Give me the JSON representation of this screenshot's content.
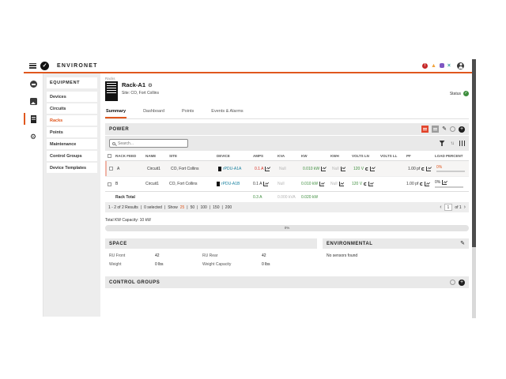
{
  "colors": {
    "accent_orange": "#E0571E",
    "alarm_red": "#D93025",
    "ok_green": "#3E8E3E",
    "link_teal": "#157F9E",
    "warning_amber": "#F2A33C",
    "purple": "#7E57C2",
    "teal_x": "#2BA198",
    "null_gray": "#B5B5B5"
  },
  "icons": {
    "check": "✓",
    "gear": "⚙",
    "edit": "✎",
    "plus": "+",
    "prev": "‹",
    "next": "›",
    "sort": "↑↓",
    "warning_triangle": "▲",
    "exclaim": "!",
    "close_x": "×"
  },
  "app_bar": {
    "title": "ENVIRONET"
  },
  "sidebar": {
    "header": "EQUIPMENT",
    "items": [
      "Devices",
      "Circuits",
      "Racks",
      "Points",
      "Maintenance",
      "Control Groups",
      "Device Templates"
    ],
    "active_item": "Racks"
  },
  "page_header": {
    "breadcrumb": "Racks",
    "title": "Rack-A1",
    "subtitle": "Site: CO, Fort Collins",
    "status_label": "Status"
  },
  "tabs": {
    "items": [
      "Summary",
      "Dashboard",
      "Points",
      "Events & Alarms"
    ],
    "active": "Summary"
  },
  "power": {
    "title": "POWER",
    "search_placeholder": "Search...",
    "columns": [
      "RACK FEED",
      "NAME",
      "SITE",
      "DEVICE",
      "AMPS",
      "KVA",
      "KW",
      "KWH",
      "VOLTS LN",
      "VOLTS LL",
      "PF",
      "LOAD PERCENT"
    ],
    "rows": [
      {
        "rack_feed": "A",
        "name": "Circuit1",
        "site": "CO, Fort Collins",
        "device": "rPDU-A1A",
        "amps": "0.1 A",
        "kva": "Null",
        "kw": "0.010 kW",
        "kwh": "Null",
        "volts_ln": "120 V",
        "volts_ll": "",
        "pf": "1.00 pf",
        "load_percent": "0%"
      },
      {
        "rack_feed": "B",
        "name": "Circuit1",
        "site": "CO, Fort Collins",
        "device": "rPDU-A1B",
        "amps": "0.1 A",
        "kva": "Null",
        "kw": "0.010 kW",
        "kwh": "Null",
        "volts_ln": "120 V",
        "volts_ll": "",
        "pf": "1.00 pf",
        "load_percent": "0%"
      }
    ],
    "total_row": {
      "label": "Rack Total",
      "amps": "0.3 A",
      "kva": "0.000 kVA",
      "kw": "0.020 kW"
    },
    "pagination": {
      "results": "1 - 2 of 2 Results",
      "selected": "0 selected",
      "show_label": "Show",
      "sizes": [
        "25",
        "50",
        "100",
        "150",
        "200"
      ],
      "active_size": "25",
      "separator": "|",
      "page": "1",
      "of": "of 1"
    },
    "capacity": {
      "label": "Total KW Capacity: 10 kW",
      "percent": "0%"
    }
  },
  "space": {
    "title": "SPACE",
    "fields": [
      {
        "label": "RU Front",
        "value": "42"
      },
      {
        "label": "RU Rear",
        "value": "42"
      },
      {
        "label": "Weight",
        "value": "0 lbs"
      },
      {
        "label": "Weight Capacity",
        "value": "0 lbs"
      }
    ]
  },
  "environmental": {
    "title": "ENVIRONMENTAL",
    "message": "No sensors found"
  },
  "control_groups": {
    "title": "CONTROL GROUPS"
  }
}
